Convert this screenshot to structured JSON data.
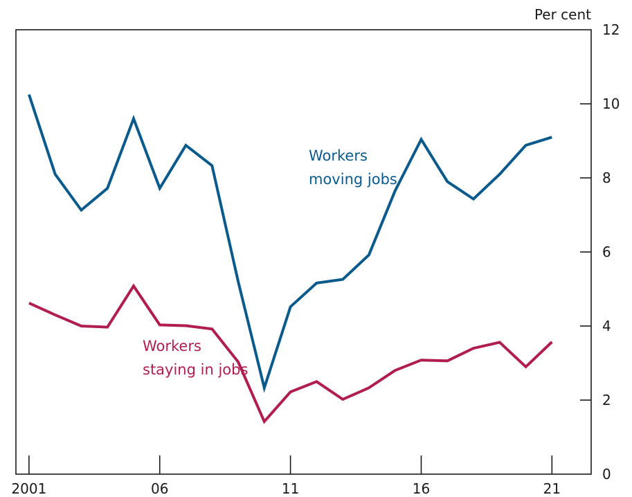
{
  "chart_data": {
    "type": "line",
    "ylabel": "Per cent",
    "ylim": [
      0,
      12
    ],
    "yticks": [
      0,
      2,
      4,
      6,
      8,
      10,
      12
    ],
    "xlim": [
      2000.5,
      2022.5
    ],
    "xticks": [
      {
        "value": 2001,
        "label": "2001"
      },
      {
        "value": 2006,
        "label": "06"
      },
      {
        "value": 2011,
        "label": "11"
      },
      {
        "value": 2016,
        "label": "16"
      },
      {
        "value": 2021,
        "label": "21"
      }
    ],
    "grid": false,
    "legend": "none",
    "series": [
      {
        "name": "Workers moving jobs",
        "label_lines": [
          "Workers",
          "moving jobs"
        ],
        "color": "#0b5a8c",
        "points": [
          [
            2001,
            10.25
          ],
          [
            2002,
            8.1
          ],
          [
            2003,
            7.13
          ],
          [
            2004,
            7.72
          ],
          [
            2005,
            9.6
          ],
          [
            2006,
            7.72
          ],
          [
            2007,
            8.88
          ],
          [
            2008,
            8.33
          ],
          [
            2009,
            5.2
          ],
          [
            2010,
            2.33
          ],
          [
            2011,
            4.52
          ],
          [
            2012,
            5.16
          ],
          [
            2013,
            5.26
          ],
          [
            2014,
            5.92
          ],
          [
            2015,
            7.65
          ],
          [
            2016,
            9.04
          ],
          [
            2017,
            7.9
          ],
          [
            2018,
            7.43
          ],
          [
            2019,
            8.1
          ],
          [
            2020,
            8.88
          ],
          [
            2021,
            9.1
          ]
        ]
      },
      {
        "name": "Workers staying in jobs",
        "label_lines": [
          "Workers",
          "staying in jobs"
        ],
        "color": "#b01e4f",
        "points": [
          [
            2001,
            4.62
          ],
          [
            2002,
            4.3
          ],
          [
            2003,
            4.0
          ],
          [
            2004,
            3.97
          ],
          [
            2005,
            5.08
          ],
          [
            2006,
            4.03
          ],
          [
            2007,
            4.01
          ],
          [
            2008,
            3.92
          ],
          [
            2009,
            3.03
          ],
          [
            2010,
            1.42
          ],
          [
            2011,
            2.22
          ],
          [
            2012,
            2.5
          ],
          [
            2013,
            2.02
          ],
          [
            2014,
            2.33
          ],
          [
            2015,
            2.8
          ],
          [
            2016,
            3.08
          ],
          [
            2017,
            3.06
          ],
          [
            2018,
            3.4
          ],
          [
            2019,
            3.56
          ],
          [
            2020,
            2.9
          ],
          [
            2021,
            3.57
          ]
        ]
      }
    ]
  }
}
